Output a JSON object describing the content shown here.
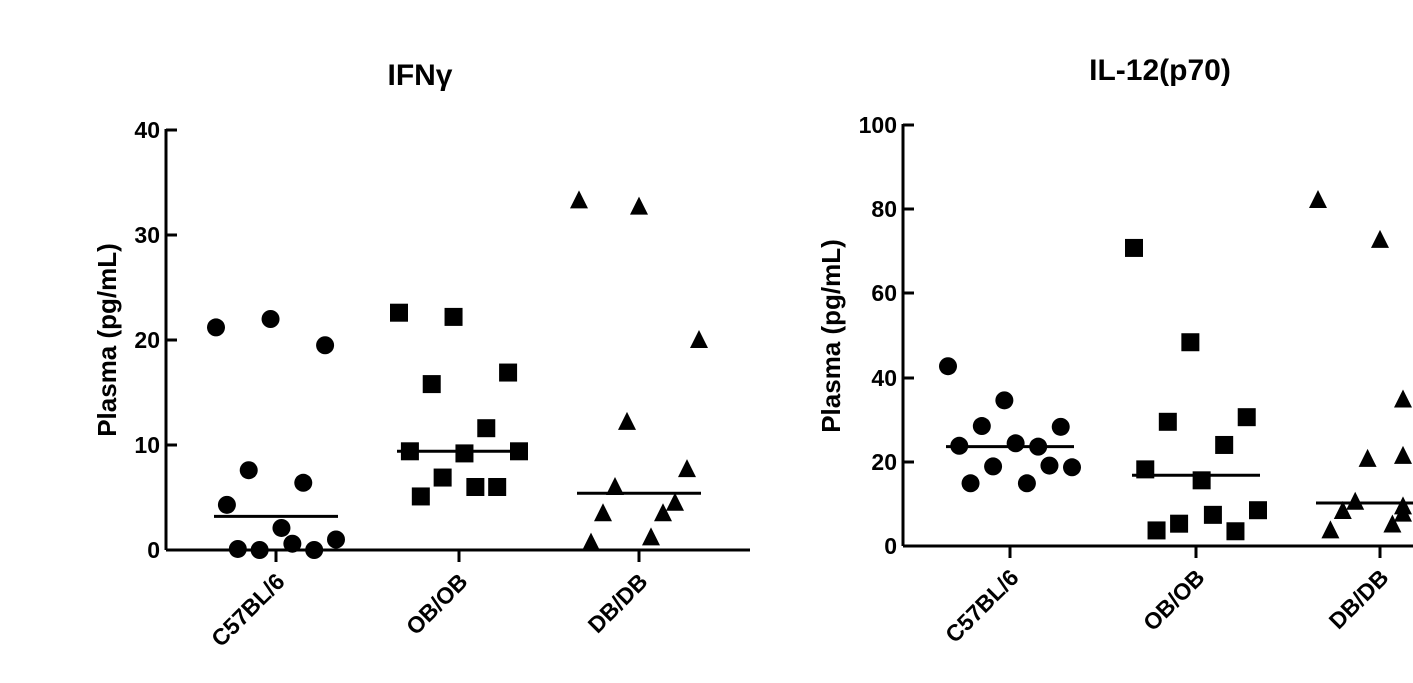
{
  "chart_data": [
    {
      "type": "scatter",
      "title": "IFNγ",
      "ylabel": "Plasma (pg/mL)",
      "ylim": [
        0,
        40
      ],
      "yticks": [
        "0",
        "10",
        "20",
        "30",
        "40"
      ],
      "categories": [
        "C57BL/6",
        "OB/OB",
        "DB/DB"
      ],
      "series": [
        {
          "category": "C57BL/6",
          "marker": "circle",
          "median": 3.2,
          "values": [
            21.2,
            22.0,
            19.5,
            7.6,
            6.4,
            4.3,
            2.1,
            1.0,
            0.0,
            0.0,
            0.1,
            0.6
          ]
        },
        {
          "category": "OB/OB",
          "marker": "square",
          "median": 9.4,
          "values": [
            22.6,
            22.2,
            16.9,
            15.8,
            11.6,
            9.4,
            9.2,
            9.4,
            6.9,
            6.0,
            5.1,
            6.0
          ]
        },
        {
          "category": "DB/DB",
          "marker": "triangle",
          "median": 5.4,
          "values": [
            33.3,
            32.7,
            20.0,
            12.2,
            7.7,
            6.0,
            4.5,
            3.5,
            3.5,
            0.7,
            1.2
          ]
        }
      ]
    },
    {
      "type": "scatter",
      "title": "IL-12(p70)",
      "ylabel": "Plasma (pg/mL)",
      "ylim": [
        0,
        100
      ],
      "yticks": [
        "0",
        "20",
        "40",
        "60",
        "80",
        "100"
      ],
      "categories": [
        "C57BL/6",
        "OB/OB",
        "DB/DB"
      ],
      "series": [
        {
          "category": "C57BL/6",
          "marker": "circle",
          "median": 23.6,
          "values": [
            42.7,
            34.6,
            28.3,
            28.5,
            23.6,
            23.8,
            24.4,
            18.7,
            18.9,
            19.1,
            14.9,
            14.9
          ]
        },
        {
          "category": "OB/OB",
          "marker": "square",
          "median": 16.8,
          "values": [
            70.8,
            48.4,
            30.6,
            29.5,
            24.0,
            18.2,
            15.6,
            8.5,
            5.3,
            3.5,
            3.7,
            7.4
          ]
        },
        {
          "category": "DB/DB",
          "marker": "triangle",
          "median": 10.2,
          "values": [
            82.2,
            72.7,
            34.8,
            20.7,
            21.4,
            10.5,
            9.4,
            8.3,
            7.7,
            3.7,
            5.1
          ]
        }
      ]
    }
  ]
}
